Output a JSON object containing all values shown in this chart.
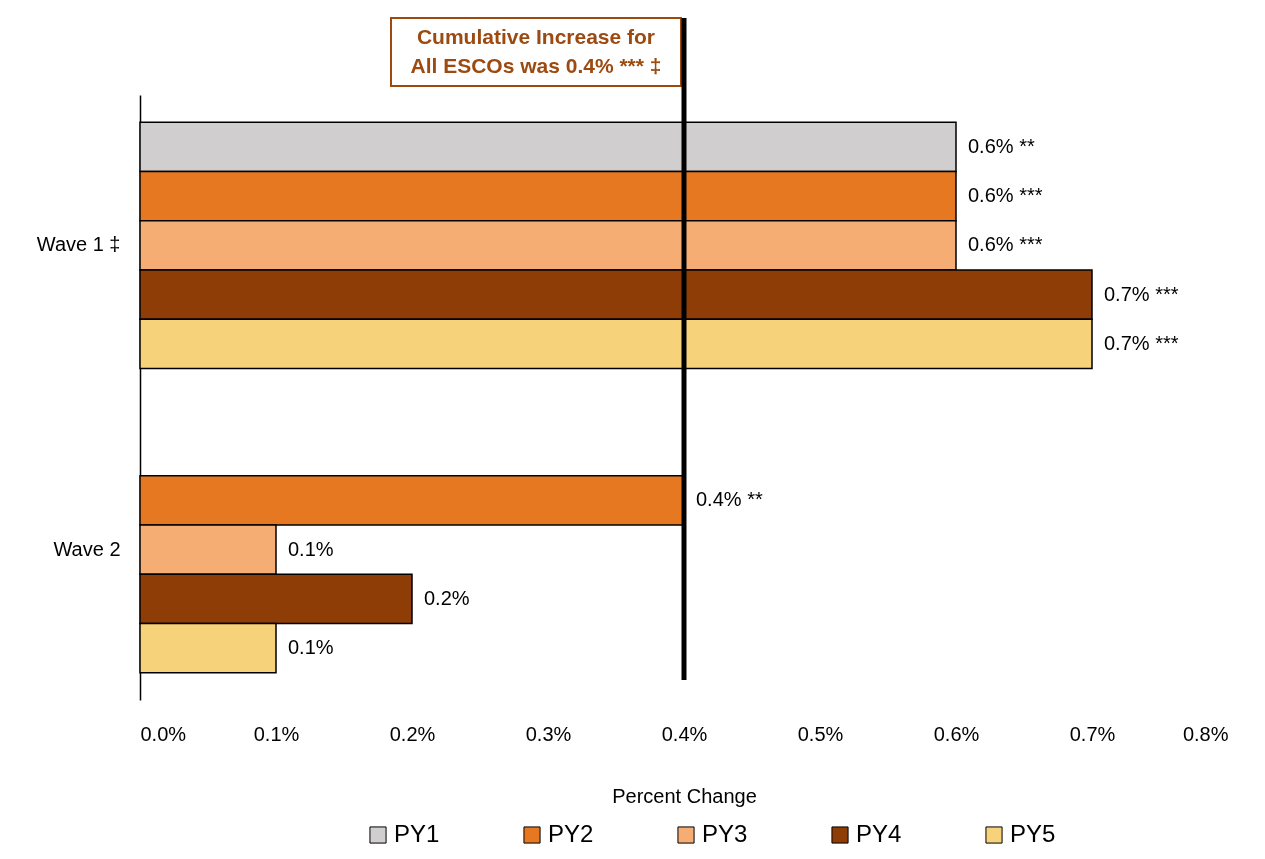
{
  "chart_data": {
    "type": "bar",
    "orientation": "horizontal",
    "xlabel": "Percent Change",
    "categories": [
      "Wave 1 ‡",
      "Wave 2"
    ],
    "xlim": [
      0,
      0.8
    ],
    "xticks": [
      {
        "value": 0,
        "label": "0.0%"
      },
      {
        "value": 0.1,
        "label": "0.1%"
      },
      {
        "value": 0.2,
        "label": "0.2%"
      },
      {
        "value": 0.3,
        "label": "0.3%"
      },
      {
        "value": 0.4,
        "label": "0.4%"
      },
      {
        "value": 0.5,
        "label": "0.5%"
      },
      {
        "value": 0.6,
        "label": "0.6%"
      },
      {
        "value": 0.7,
        "label": "0.7%"
      },
      {
        "value": 0.8,
        "label": "0.8%"
      }
    ],
    "series": [
      {
        "name": "PY1",
        "color": "#d0cece",
        "values": [
          0.6,
          null
        ],
        "value_labels": [
          "0.6% **",
          null
        ]
      },
      {
        "name": "PY2",
        "color": "#e67822",
        "values": [
          0.6,
          0.4
        ],
        "value_labels": [
          "0.6% ***",
          "0.4% **"
        ]
      },
      {
        "name": "PY3",
        "color": "#f5ad74",
        "values": [
          0.6,
          0.1
        ],
        "value_labels": [
          "0.6% ***",
          "0.1%"
        ]
      },
      {
        "name": "PY4",
        "color": "#8e3d06",
        "values": [
          0.7,
          0.2
        ],
        "value_labels": [
          "0.7% ***",
          "0.2%"
        ]
      },
      {
        "name": "PY5",
        "color": "#f6d27a",
        "values": [
          0.7,
          0.1
        ],
        "value_labels": [
          "0.7% ***",
          "0.1%"
        ]
      }
    ],
    "ref_lines": [
      {
        "axis": "x",
        "value": 0.4,
        "label": "Cumulative Increase for All ESCOs was 0.4% *** ‡",
        "color": "#000000"
      }
    ],
    "legend": "bottom",
    "grid": false
  }
}
